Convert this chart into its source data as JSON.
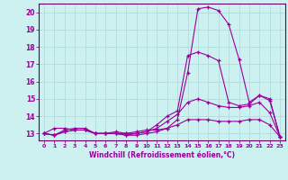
{
  "xlabel": "Windchill (Refroidissement éolien,°C)",
  "bg_color": "#cdf0f0",
  "line_color": "#990099",
  "grid_color": "#aad8d8",
  "axis_color": "#660066",
  "xlim": [
    -0.5,
    23.5
  ],
  "ylim": [
    12.6,
    20.5
  ],
  "yticks": [
    13,
    14,
    15,
    16,
    17,
    18,
    19,
    20
  ],
  "xticks": [
    0,
    1,
    2,
    3,
    4,
    5,
    6,
    7,
    8,
    9,
    10,
    11,
    12,
    13,
    14,
    15,
    16,
    17,
    18,
    19,
    20,
    21,
    22,
    23
  ],
  "series": [
    {
      "x": [
        0,
        1,
        2,
        3,
        4,
        5,
        6,
        7,
        8,
        9,
        10,
        11,
        12,
        13,
        14,
        15,
        16,
        17,
        18,
        19,
        20,
        21,
        22,
        23
      ],
      "y": [
        13.0,
        13.3,
        13.3,
        13.2,
        13.2,
        13.0,
        13.0,
        13.1,
        13.0,
        13.1,
        13.2,
        13.2,
        13.3,
        13.8,
        16.5,
        20.2,
        20.3,
        20.1,
        19.3,
        17.3,
        14.8,
        15.2,
        15.0,
        12.8
      ]
    },
    {
      "x": [
        0,
        1,
        2,
        3,
        4,
        5,
        6,
        7,
        8,
        9,
        10,
        11,
        12,
        13,
        14,
        15,
        16,
        17,
        18,
        19,
        20,
        21,
        22,
        23
      ],
      "y": [
        13.0,
        12.9,
        13.2,
        13.3,
        13.3,
        13.0,
        13.0,
        13.0,
        13.0,
        13.0,
        13.1,
        13.5,
        14.0,
        14.3,
        17.5,
        17.7,
        17.5,
        17.2,
        14.8,
        14.6,
        14.7,
        15.2,
        14.9,
        12.8
      ]
    },
    {
      "x": [
        0,
        1,
        2,
        3,
        4,
        5,
        6,
        7,
        8,
        9,
        10,
        11,
        12,
        13,
        14,
        15,
        16,
        17,
        18,
        19,
        20,
        21,
        22,
        23
      ],
      "y": [
        13.0,
        12.9,
        13.1,
        13.2,
        13.2,
        13.0,
        13.0,
        13.0,
        12.9,
        13.0,
        13.1,
        13.3,
        13.7,
        14.1,
        14.8,
        15.0,
        14.8,
        14.6,
        14.5,
        14.5,
        14.6,
        14.8,
        14.2,
        12.8
      ]
    },
    {
      "x": [
        0,
        1,
        2,
        3,
        4,
        5,
        6,
        7,
        8,
        9,
        10,
        11,
        12,
        13,
        14,
        15,
        16,
        17,
        18,
        19,
        20,
        21,
        22,
        23
      ],
      "y": [
        13.0,
        12.9,
        13.1,
        13.2,
        13.2,
        13.0,
        13.0,
        13.0,
        12.9,
        12.9,
        13.0,
        13.1,
        13.3,
        13.5,
        13.8,
        13.8,
        13.8,
        13.7,
        13.7,
        13.7,
        13.8,
        13.8,
        13.5,
        12.8
      ]
    }
  ]
}
